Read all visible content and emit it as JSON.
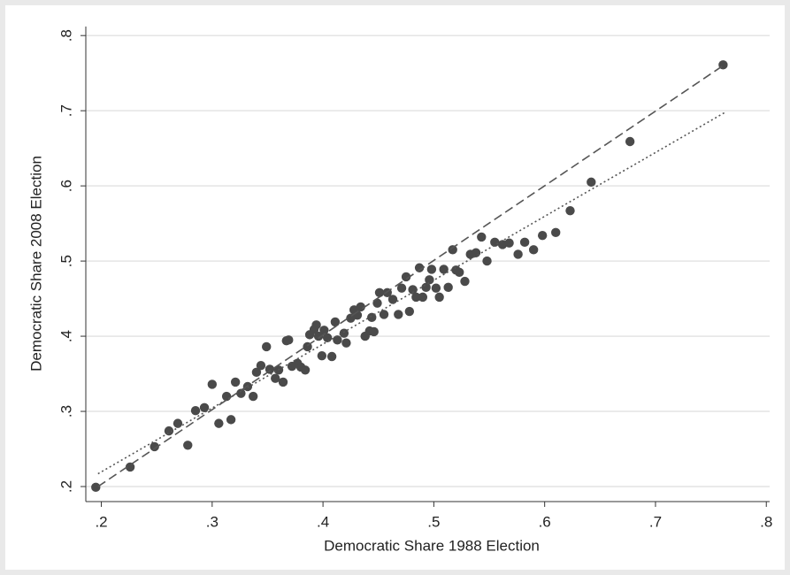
{
  "chart_data": {
    "type": "scatter",
    "x_label": "Democratic Share 1988 Election",
    "y_label": "Democratic Share 2008 Election",
    "xlim": [
      0.186,
      0.803
    ],
    "ylim": [
      0.18,
      0.812
    ],
    "xticks": [
      {
        "value": 0.2,
        "label": ".2"
      },
      {
        "value": 0.3,
        "label": ".3"
      },
      {
        "value": 0.4,
        "label": ".4"
      },
      {
        "value": 0.5,
        "label": ".5"
      },
      {
        "value": 0.6,
        "label": ".6"
      },
      {
        "value": 0.7,
        "label": ".7"
      },
      {
        "value": 0.8,
        "label": ".8"
      }
    ],
    "yticks": [
      {
        "value": 0.2,
        "label": ".2"
      },
      {
        "value": 0.3,
        "label": ".3"
      },
      {
        "value": 0.4,
        "label": ".4"
      },
      {
        "value": 0.5,
        "label": ".5"
      },
      {
        "value": 0.6,
        "label": ".6"
      },
      {
        "value": 0.7,
        "label": ".7"
      },
      {
        "value": 0.8,
        "label": ".8"
      }
    ],
    "grid": true,
    "color": "#4a4a4a",
    "x": [
      0.195,
      0.226,
      0.248,
      0.261,
      0.269,
      0.278,
      0.285,
      0.293,
      0.3,
      0.306,
      0.313,
      0.317,
      0.321,
      0.326,
      0.332,
      0.337,
      0.34,
      0.344,
      0.349,
      0.352,
      0.357,
      0.36,
      0.364,
      0.367,
      0.369,
      0.372,
      0.377,
      0.38,
      0.384,
      0.386,
      0.388,
      0.392,
      0.394,
      0.396,
      0.399,
      0.401,
      0.404,
      0.408,
      0.411,
      0.413,
      0.419,
      0.421,
      0.425,
      0.428,
      0.431,
      0.434,
      0.438,
      0.442,
      0.444,
      0.446,
      0.449,
      0.451,
      0.455,
      0.458,
      0.463,
      0.468,
      0.471,
      0.475,
      0.478,
      0.481,
      0.484,
      0.487,
      0.49,
      0.493,
      0.496,
      0.498,
      0.502,
      0.505,
      0.509,
      0.513,
      0.517,
      0.52,
      0.523,
      0.528,
      0.533,
      0.538,
      0.543,
      0.548,
      0.555,
      0.562,
      0.568,
      0.576,
      0.582,
      0.59,
      0.598,
      0.61,
      0.623,
      0.642,
      0.677,
      0.761
    ],
    "values": [
      0.199,
      0.226,
      0.253,
      0.274,
      0.284,
      0.255,
      0.301,
      0.305,
      0.336,
      0.284,
      0.32,
      0.289,
      0.339,
      0.324,
      0.333,
      0.32,
      0.352,
      0.361,
      0.386,
      0.356,
      0.344,
      0.355,
      0.339,
      0.394,
      0.395,
      0.36,
      0.364,
      0.359,
      0.355,
      0.386,
      0.402,
      0.409,
      0.415,
      0.4,
      0.374,
      0.408,
      0.398,
      0.373,
      0.419,
      0.395,
      0.404,
      0.391,
      0.424,
      0.435,
      0.428,
      0.439,
      0.4,
      0.407,
      0.425,
      0.406,
      0.444,
      0.458,
      0.429,
      0.458,
      0.449,
      0.429,
      0.464,
      0.479,
      0.433,
      0.462,
      0.452,
      0.491,
      0.452,
      0.465,
      0.475,
      0.489,
      0.464,
      0.452,
      0.489,
      0.465,
      0.515,
      0.488,
      0.485,
      0.473,
      0.509,
      0.511,
      0.532,
      0.5,
      0.525,
      0.522,
      0.524,
      0.509,
      0.525,
      0.515,
      0.534,
      0.538,
      0.567,
      0.605,
      0.659,
      0.761
    ],
    "fit_lines": [
      {
        "x": [
          0.197,
          0.763
        ],
        "y": [
          0.2,
          0.762
        ],
        "style": "dashed",
        "color": "#555555"
      },
      {
        "x": [
          0.197,
          0.763
        ],
        "y": [
          0.217,
          0.698
        ],
        "style": "dotted",
        "color": "#555555"
      }
    ]
  }
}
